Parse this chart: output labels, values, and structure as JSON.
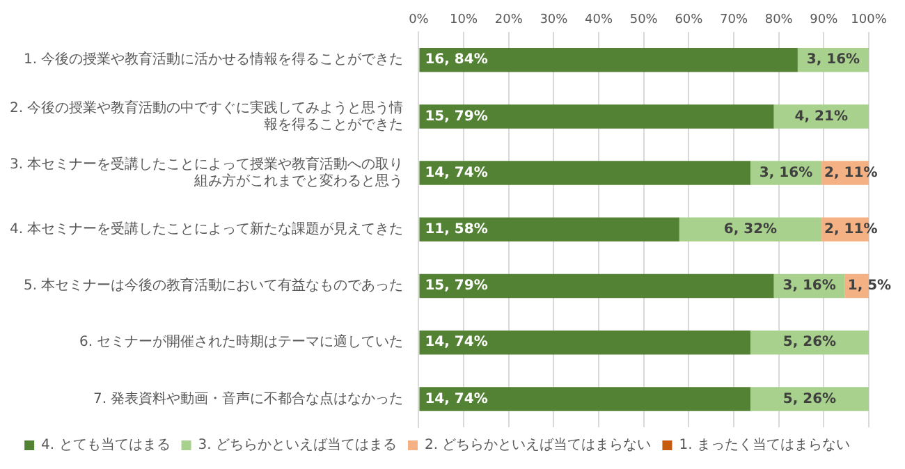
{
  "chart_data": {
    "type": "bar",
    "orientation": "horizontal",
    "stacked": true,
    "categories": [
      "1. 今後の授業や教育活動に活かせる情報を得ることができた",
      "2. 今後の授業や教育活動の中ですぐに実践してみようと思う情報を得ることができた",
      "3. 本セミナーを受講したことによって授業や教育活動への取り組み方がこれまでと変わると思う",
      "4. 本セミナーを受講したことによって新たな課題が見えてきた",
      "5. 本セミナーは今後の教育活動において有益なものであった",
      "6. セミナーが開催された時期はテーマに適していた",
      "7. 発表資料や動画・音声に不都合な点はなかった"
    ],
    "series": [
      {
        "name": "4. とても当てはまる",
        "color": "#548235",
        "values": [
          84.2,
          78.9,
          73.7,
          57.9,
          78.9,
          73.7,
          73.7
        ],
        "value_labels": [
          "16, 84%",
          "15, 79%",
          "14, 74%",
          "11, 58%",
          "15, 79%",
          "14, 74%",
          "14, 74%"
        ]
      },
      {
        "name": "3. どちらかといえば当てはまる",
        "color": "#a9d18e",
        "values": [
          15.8,
          21.1,
          15.8,
          31.6,
          15.8,
          26.3,
          26.3
        ],
        "value_labels": [
          "3, 16%",
          "4, 21%",
          "3, 16%",
          "6, 32%",
          "3, 16%",
          "5, 26%",
          "5, 26%"
        ]
      },
      {
        "name": "2. どちらかといえば当てはまらない",
        "color": "#f4b183",
        "values": [
          null,
          null,
          10.5,
          10.5,
          5.3,
          null,
          null
        ],
        "value_labels": [
          null,
          null,
          "2, 11%",
          "2, 11%",
          "1, 5%",
          null,
          null
        ]
      },
      {
        "name": "1. まったく当てはまらない",
        "color": "#c55a11",
        "values": [
          null,
          null,
          null,
          null,
          null,
          null,
          null
        ]
      }
    ],
    "xlim": [
      0,
      100
    ],
    "xticks": [
      {
        "value": 0,
        "label": "0%"
      },
      {
        "value": 10,
        "label": "10%"
      },
      {
        "value": 20,
        "label": "20%"
      },
      {
        "value": 30,
        "label": "30%"
      },
      {
        "value": 40,
        "label": "40%"
      },
      {
        "value": 50,
        "label": "50%"
      },
      {
        "value": 60,
        "label": "60%"
      },
      {
        "value": 70,
        "label": "70%"
      },
      {
        "value": 80,
        "label": "80%"
      },
      {
        "value": 90,
        "label": "90%"
      },
      {
        "value": 100,
        "label": "100%"
      }
    ],
    "grid": "x",
    "legend": "bottom"
  }
}
